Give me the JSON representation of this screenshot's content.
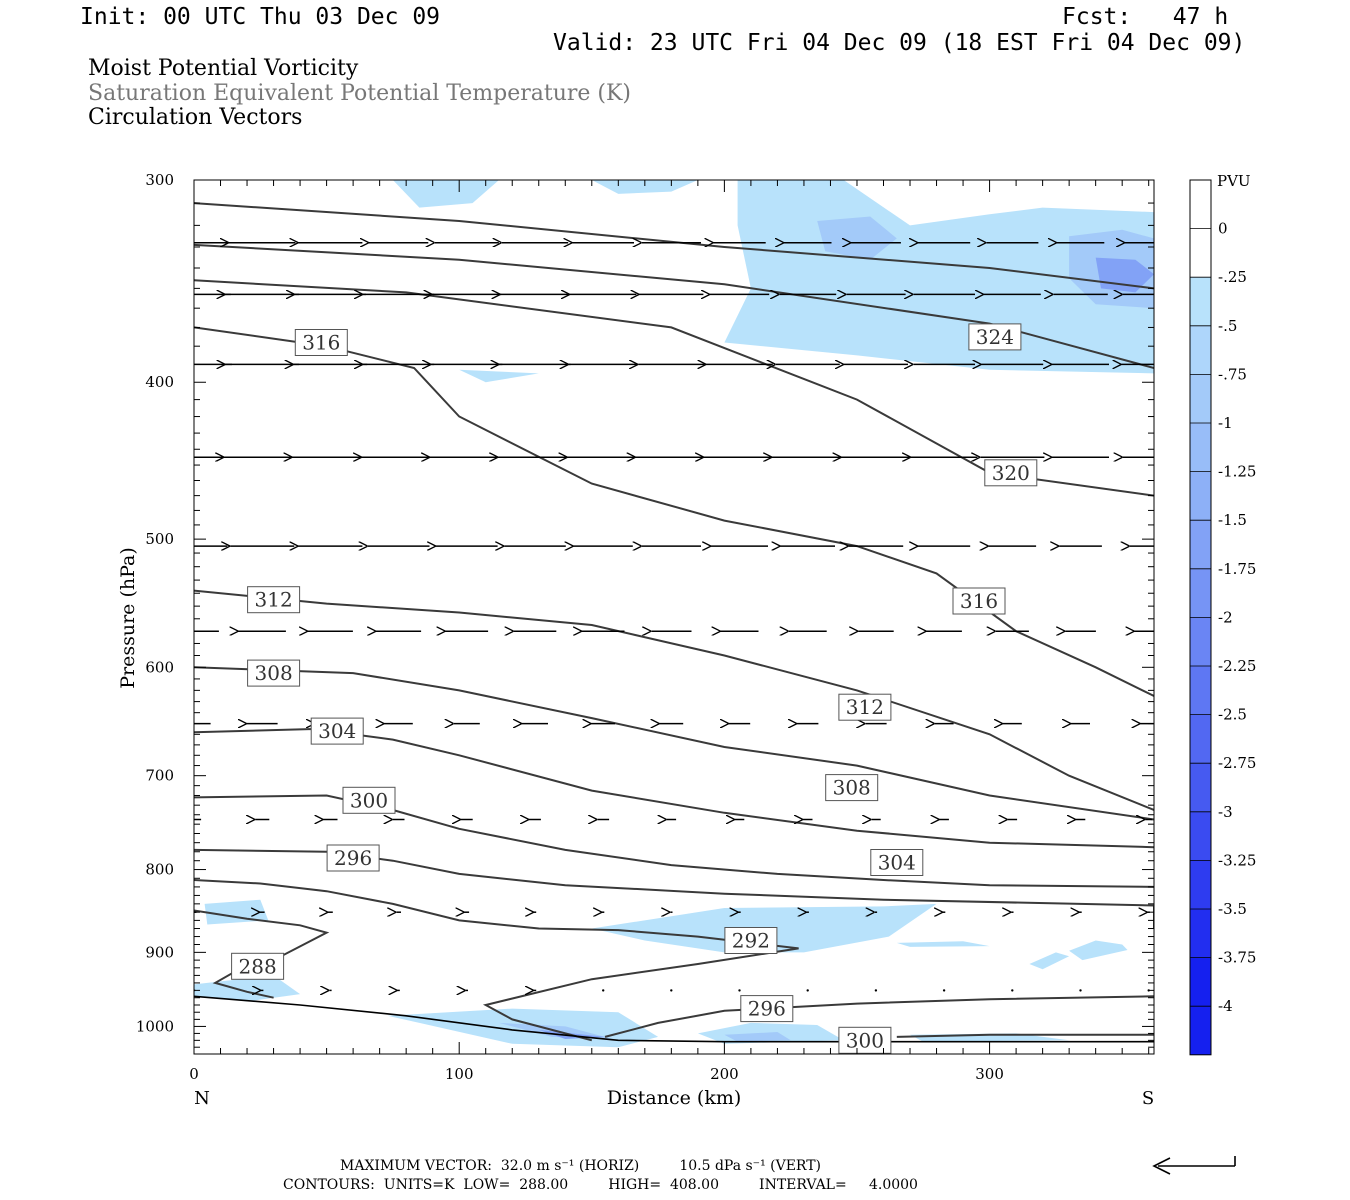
{
  "header": {
    "init": "Init: 00 UTC Thu 03 Dec 09",
    "fcst": "Fcst:   47 h",
    "valid": "Valid: 23 UTC Fri 04 Dec 09 (18 EST Fri 04 Dec 09)"
  },
  "titles": {
    "line1": "Moist Potential Vorticity",
    "line2": "Saturation Equivalent Potential Temperature (K)",
    "line3": "Circulation Vectors"
  },
  "footer": {
    "max_vector": "MAXIMUM VECTOR:  32.0 m s⁻¹ (HORIZ)         10.5 dPa s⁻¹ (VERT)",
    "contours": "CONTOURS:  UNITS=K  LOW=  288.00         HIGH=  408.00         INTERVAL=     4.0000"
  },
  "colors": {
    "contour": "#3a3a3a",
    "pv_shades": [
      "#ffffff",
      "#ffffff",
      "#b8e2fb",
      "#aed6fb",
      "#a3caf9",
      "#98bdf8",
      "#8db0f7",
      "#82a2f6",
      "#7694f5",
      "#6a85f4",
      "#5e77f3",
      "#5268f2",
      "#465af1",
      "#3a4bf1",
      "#2e3cf0",
      "#222ef0",
      "#1520ef"
    ]
  },
  "chart_data": {
    "type": "contour",
    "xlabel": "Distance (km)",
    "ylabel": "Pressure (hPa)",
    "xlim": [
      0,
      362
    ],
    "ylim": [
      300,
      1040
    ],
    "y_scale": "log-pressure (inverted)",
    "x_ticks": [
      0,
      100,
      200,
      300
    ],
    "y_ticks": [
      300,
      400,
      500,
      600,
      700,
      800,
      900,
      1000
    ],
    "x_end_labels": {
      "left": "N",
      "right": "S"
    },
    "colorbar": {
      "label": "PVU",
      "ticks": [
        "0",
        "-.25",
        "-.5",
        "-.75",
        "-1",
        "-1.25",
        "-1.5",
        "-1.75",
        "-2",
        "-2.25",
        "-2.5",
        "-2.75",
        "-3",
        "-3.25",
        "-3.5",
        "-3.75",
        "-4"
      ]
    },
    "theta_es_contours": [
      {
        "value": 288,
        "points": [
          [
            0,
            848
          ],
          [
            20,
            858
          ],
          [
            40,
            866
          ],
          [
            50,
            875
          ],
          [
            30,
            910
          ],
          [
            18,
            920
          ],
          [
            8,
            940
          ],
          [
            20,
            952
          ],
          [
            30,
            960
          ]
        ]
      },
      {
        "value": 292,
        "points": [
          [
            0,
            812
          ],
          [
            25,
            816
          ],
          [
            50,
            825
          ],
          [
            75,
            840
          ],
          [
            100,
            860
          ],
          [
            130,
            870
          ],
          [
            160,
            872
          ],
          [
            190,
            880
          ],
          [
            228,
            895
          ],
          [
            190,
            915
          ],
          [
            150,
            935
          ],
          [
            110,
            970
          ],
          [
            120,
            990
          ],
          [
            135,
            1005
          ],
          [
            150,
            1020
          ]
        ]
      },
      {
        "value": 296,
        "points": [
          [
            0,
            778
          ],
          [
            50,
            780
          ],
          [
            75,
            790
          ],
          [
            100,
            805
          ],
          [
            140,
            818
          ],
          [
            200,
            828
          ],
          [
            260,
            835
          ],
          [
            362,
            842
          ],
          [
            362,
            870
          ]
        ]
      },
      {
        "value": 296,
        "points": [
          [
            155,
            1015
          ],
          [
            175,
            995
          ],
          [
            200,
            978
          ],
          [
            250,
            968
          ],
          [
            300,
            962
          ],
          [
            362,
            958
          ]
        ]
      },
      {
        "value": 300,
        "points": [
          [
            0,
            722
          ],
          [
            50,
            720
          ],
          [
            75,
            735
          ],
          [
            100,
            755
          ],
          [
            140,
            778
          ],
          [
            180,
            795
          ],
          [
            220,
            805
          ],
          [
            260,
            812
          ],
          [
            300,
            818
          ],
          [
            362,
            820
          ]
        ]
      },
      {
        "value": 300,
        "points": [
          [
            265,
            1015
          ],
          [
            300,
            1012
          ],
          [
            362,
            1012
          ]
        ]
      },
      {
        "value": 304,
        "points": [
          [
            0,
            658
          ],
          [
            45,
            655
          ],
          [
            75,
            665
          ],
          [
            100,
            680
          ],
          [
            150,
            715
          ],
          [
            200,
            738
          ],
          [
            250,
            757
          ],
          [
            300,
            770
          ],
          [
            362,
            775
          ]
        ]
      },
      {
        "value": 308,
        "points": [
          [
            0,
            600
          ],
          [
            60,
            605
          ],
          [
            100,
            620
          ],
          [
            150,
            645
          ],
          [
            200,
            672
          ],
          [
            250,
            690
          ],
          [
            300,
            720
          ],
          [
            362,
            745
          ]
        ]
      },
      {
        "value": 312,
        "points": [
          [
            0,
            538
          ],
          [
            50,
            548
          ],
          [
            100,
            555
          ],
          [
            150,
            565
          ],
          [
            200,
            590
          ],
          [
            250,
            620
          ],
          [
            300,
            660
          ],
          [
            330,
            700
          ],
          [
            362,
            735
          ]
        ]
      },
      {
        "value": 316,
        "points": [
          [
            0,
            370
          ],
          [
            50,
            380
          ],
          [
            83,
            392
          ],
          [
            100,
            420
          ],
          [
            150,
            462
          ],
          [
            200,
            487
          ],
          [
            250,
            505
          ],
          [
            280,
            525
          ],
          [
            310,
            570
          ],
          [
            340,
            600
          ],
          [
            362,
            625
          ]
        ]
      },
      {
        "value": 320,
        "points": [
          [
            0,
            346
          ],
          [
            80,
            352
          ],
          [
            180,
            370
          ],
          [
            250,
            410
          ],
          [
            300,
            455
          ],
          [
            362,
            470
          ]
        ]
      },
      {
        "value": 324,
        "points": [
          [
            0,
            329
          ],
          [
            100,
            336
          ],
          [
            200,
            348
          ],
          [
            300,
            368
          ],
          [
            362,
            392
          ]
        ]
      },
      {
        "value": 328,
        "points": [
          [
            0,
            310
          ],
          [
            100,
            318
          ],
          [
            200,
            330
          ],
          [
            300,
            340
          ],
          [
            362,
            350
          ]
        ]
      }
    ],
    "contour_labels": [
      {
        "value": "316",
        "x": 48,
        "p": 378
      },
      {
        "value": "324",
        "x": 302,
        "p": 375
      },
      {
        "value": "320",
        "x": 308,
        "p": 455
      },
      {
        "value": "316",
        "x": 296,
        "p": 546
      },
      {
        "value": "312",
        "x": 30,
        "p": 545
      },
      {
        "value": "308",
        "x": 30,
        "p": 605
      },
      {
        "value": "312",
        "x": 253,
        "p": 635
      },
      {
        "value": "304",
        "x": 54,
        "p": 657
      },
      {
        "value": "308",
        "x": 248,
        "p": 712
      },
      {
        "value": "300",
        "x": 66,
        "p": 725
      },
      {
        "value": "296",
        "x": 60,
        "p": 787
      },
      {
        "value": "304",
        "x": 265,
        "p": 792
      },
      {
        "value": "292",
        "x": 210,
        "p": 885
      },
      {
        "value": "288",
        "x": 24,
        "p": 918
      },
      {
        "value": "296",
        "x": 216,
        "p": 975
      },
      {
        "value": "300",
        "x": 253,
        "p": 1020
      }
    ],
    "mpv_regions": [
      {
        "level": -0.25,
        "points": [
          [
            205,
            300
          ],
          [
            245,
            300
          ],
          [
            270,
            320
          ],
          [
            300,
            315
          ],
          [
            320,
            312
          ],
          [
            362,
            314
          ],
          [
            362,
            395
          ],
          [
            300,
            393
          ],
          [
            250,
            385
          ],
          [
            200,
            378
          ],
          [
            210,
            350
          ],
          [
            205,
            320
          ]
        ]
      },
      {
        "level": -0.75,
        "points": [
          [
            235,
            318
          ],
          [
            255,
            316
          ],
          [
            265,
            326
          ],
          [
            255,
            336
          ],
          [
            238,
            332
          ]
        ]
      },
      {
        "level": -0.75,
        "points": [
          [
            330,
            325
          ],
          [
            350,
            322
          ],
          [
            362,
            326
          ],
          [
            362,
            360
          ],
          [
            340,
            358
          ],
          [
            330,
            345
          ]
        ]
      },
      {
        "level": -1.5,
        "points": [
          [
            340,
            335
          ],
          [
            355,
            336
          ],
          [
            362,
            343
          ],
          [
            355,
            352
          ],
          [
            342,
            350
          ]
        ]
      },
      {
        "level": -0.25,
        "points": [
          [
            75,
            300
          ],
          [
            115,
            300
          ],
          [
            105,
            310
          ],
          [
            85,
            312
          ]
        ]
      },
      {
        "level": -0.25,
        "points": [
          [
            150,
            300
          ],
          [
            190,
            300
          ],
          [
            180,
            305
          ],
          [
            160,
            306
          ]
        ]
      },
      {
        "level": -0.25,
        "points": [
          [
            100,
            393
          ],
          [
            130,
            395
          ],
          [
            110,
            400
          ]
        ]
      },
      {
        "level": -0.25,
        "points": [
          [
            4,
            840
          ],
          [
            25,
            835
          ],
          [
            28,
            860
          ],
          [
            5,
            865
          ]
        ]
      },
      {
        "level": -0.25,
        "points": [
          [
            0,
            942
          ],
          [
            30,
            930
          ],
          [
            40,
            955
          ],
          [
            20,
            965
          ],
          [
            0,
            958
          ]
        ]
      },
      {
        "level": -0.25,
        "points": [
          [
            150,
            870
          ],
          [
            200,
            845
          ],
          [
            260,
            843
          ],
          [
            280,
            840
          ],
          [
            262,
            880
          ],
          [
            230,
            900
          ],
          [
            200,
            900
          ],
          [
            170,
            885
          ]
        ]
      },
      {
        "level": -0.25,
        "points": [
          [
            265,
            888
          ],
          [
            290,
            886
          ],
          [
            300,
            892
          ],
          [
            270,
            893
          ]
        ]
      },
      {
        "level": -0.25,
        "points": [
          [
            315,
            915
          ],
          [
            325,
            900
          ],
          [
            330,
            905
          ],
          [
            320,
            922
          ]
        ]
      },
      {
        "level": -0.25,
        "points": [
          [
            330,
            898
          ],
          [
            340,
            885
          ],
          [
            350,
            890
          ],
          [
            352,
            897
          ],
          [
            335,
            910
          ]
        ]
      },
      {
        "level": -0.25,
        "points": [
          [
            73,
            985
          ],
          [
            120,
            975
          ],
          [
            160,
            980
          ],
          [
            175,
            1015
          ],
          [
            160,
            1030
          ],
          [
            120,
            1025
          ],
          [
            85,
            995
          ]
        ]
      },
      {
        "level": -0.75,
        "points": [
          [
            115,
            995
          ],
          [
            140,
            1000
          ],
          [
            158,
            1018
          ],
          [
            135,
            1015
          ]
        ]
      },
      {
        "level": -1.5,
        "points": [
          [
            130,
            1005
          ],
          [
            155,
            1015
          ],
          [
            140,
            1018
          ]
        ]
      },
      {
        "level": -0.25,
        "points": [
          [
            190,
            1010
          ],
          [
            210,
            995
          ],
          [
            235,
            998
          ],
          [
            245,
            1020
          ],
          [
            200,
            1025
          ]
        ]
      },
      {
        "level": -0.75,
        "points": [
          [
            200,
            1012
          ],
          [
            220,
            1008
          ],
          [
            225,
            1020
          ],
          [
            205,
            1022
          ]
        ]
      },
      {
        "level": -0.25,
        "points": [
          [
            270,
            1012
          ],
          [
            310,
            1010
          ],
          [
            330,
            1020
          ],
          [
            275,
            1022
          ]
        ]
      }
    ],
    "vector_rows": [
      {
        "p": 328,
        "u": [
          -30,
          -28,
          -27,
          -25,
          -27,
          -28,
          -26,
          -25,
          -22,
          -20,
          -21,
          -22,
          -22,
          -20,
          -20
        ]
      },
      {
        "p": 353,
        "u": [
          -31,
          -31,
          -30,
          -30,
          -29,
          -29,
          -28,
          -27,
          -25,
          -24,
          -25,
          -26,
          -24,
          -23,
          -22
        ]
      },
      {
        "p": 390,
        "u": [
          -32,
          -31,
          -31,
          -30,
          -30,
          -30,
          -29,
          -28,
          -28,
          -27,
          -27,
          -26,
          -26,
          -24,
          -23
        ]
      },
      {
        "p": 445,
        "u": [
          -32,
          -32,
          -32,
          -31,
          -31,
          -31,
          -30,
          -30,
          -30,
          -30,
          -29,
          -28,
          -27,
          -24,
          -22
        ]
      },
      {
        "p": 505,
        "u": [
          -28,
          -27,
          -27,
          -26,
          -26,
          -26,
          -25,
          -25,
          -24,
          -23,
          -23,
          -22,
          -20,
          -18,
          -16
        ]
      },
      {
        "p": 570,
        "u": [
          -21,
          -20,
          -19,
          -19,
          -18,
          -18,
          -18,
          -17,
          -16,
          -16,
          -15,
          -15,
          -14,
          -13,
          -12
        ]
      },
      {
        "p": 650,
        "u": [
          -14,
          -13,
          -13,
          -12,
          -11,
          -11,
          -10,
          -10,
          -9,
          -9,
          -9,
          -8,
          -8,
          -8,
          -7
        ]
      },
      {
        "p": 745,
        "u": [
          -6,
          -6,
          -6,
          -5,
          -5,
          -5,
          -5,
          -4,
          -4,
          -4,
          -4,
          -4,
          -4,
          -4,
          -3
        ]
      },
      {
        "p": 850,
        "u": [
          -2,
          -2,
          -2,
          -2,
          -2,
          -1,
          -1,
          -1,
          -1,
          -1,
          -1,
          -1,
          -1,
          -1,
          -1
        ]
      },
      {
        "p": 950,
        "u": [
          -1,
          -1,
          -1,
          -1,
          -1,
          -1,
          0,
          0,
          0,
          0,
          0,
          0,
          0,
          0,
          0
        ]
      }
    ],
    "surface_line": [
      [
        0,
        958
      ],
      [
        40,
        970
      ],
      [
        80,
        985
      ],
      [
        120,
        1005
      ],
      [
        160,
        1020
      ],
      [
        200,
        1022
      ],
      [
        362,
        1022
      ]
    ]
  }
}
